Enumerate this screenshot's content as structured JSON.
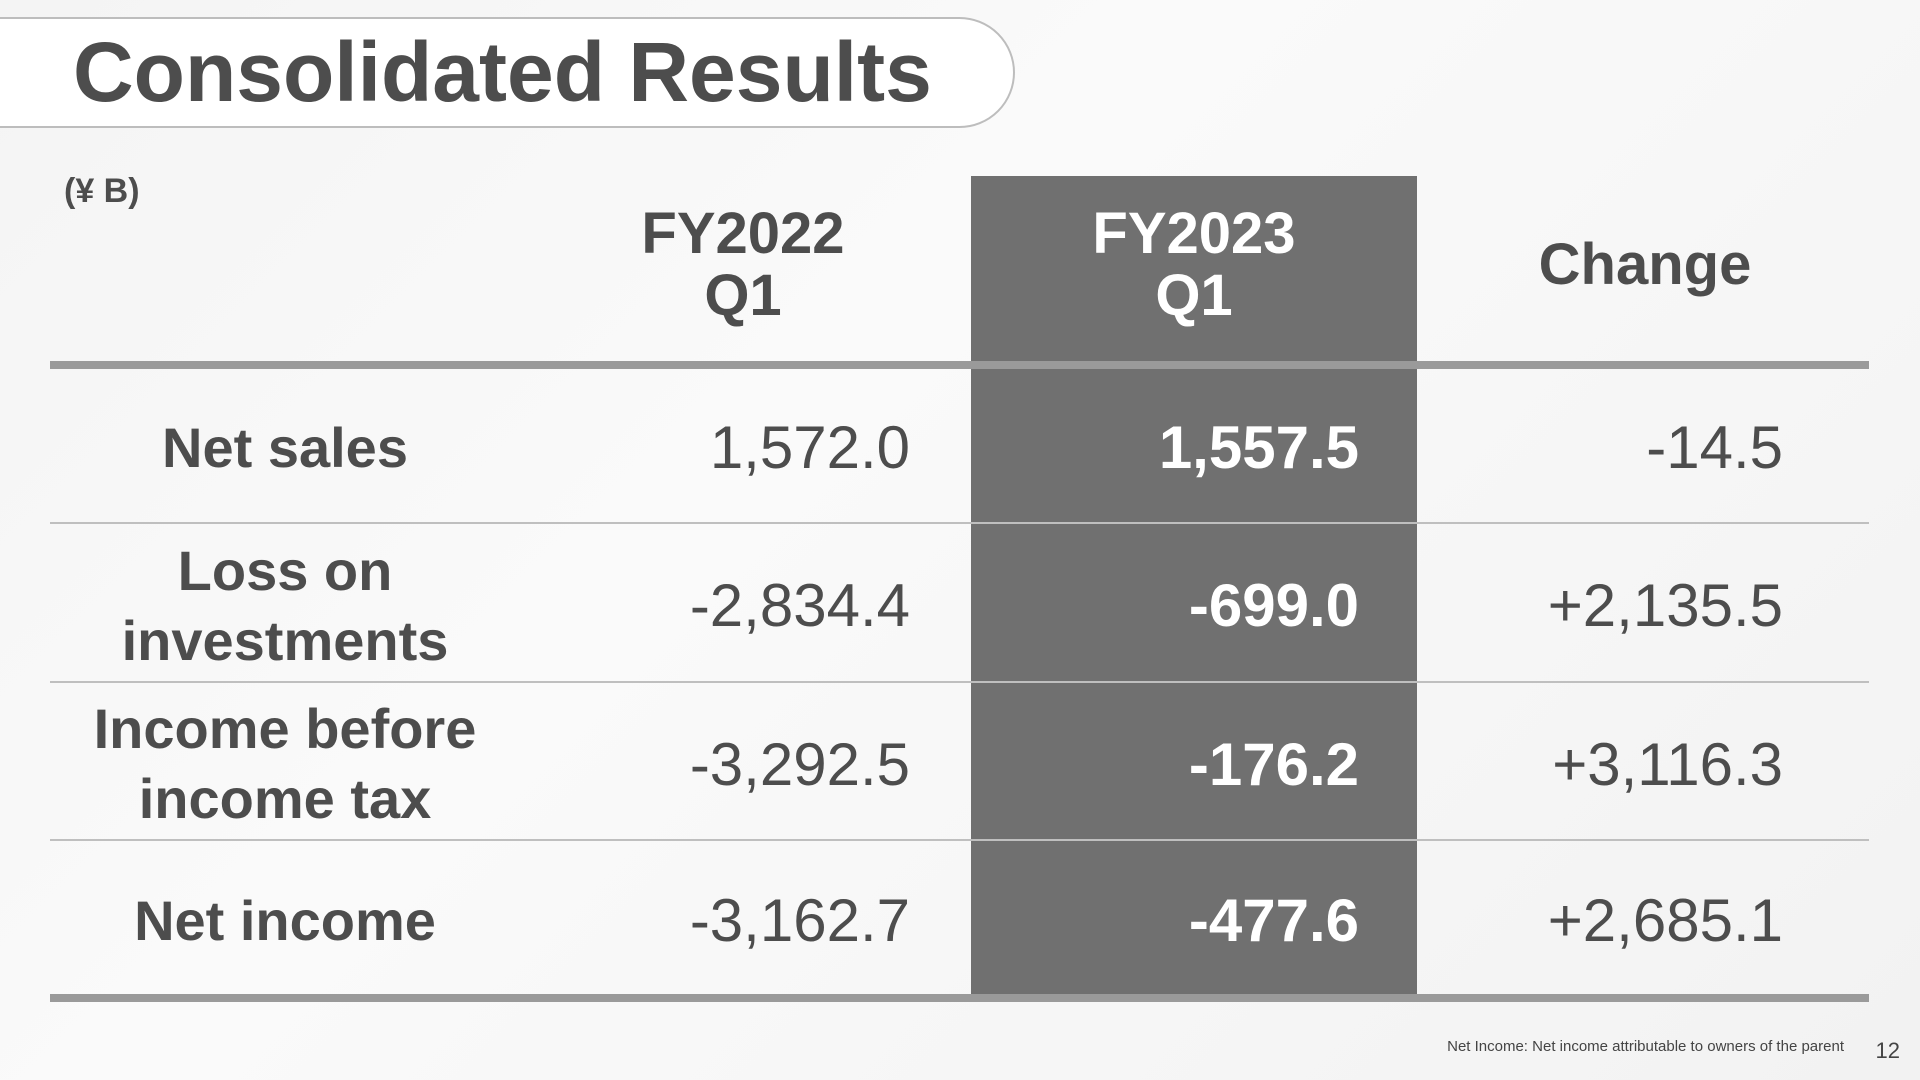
{
  "header": {
    "title": "Consolidated Results",
    "unit": "(¥ B)"
  },
  "table": {
    "columns": [
      "FY2022 Q1",
      "FY2023 Q1",
      "Change"
    ],
    "rows": [
      [
        "Net sales",
        "1,572.0",
        "1,557.5",
        "-14.5"
      ],
      [
        "Loss on investments",
        "-2,834.4",
        "-699.0",
        "+2,135.5"
      ],
      [
        "Income before income tax",
        "-3,292.5",
        "-176.2",
        "+3,116.3"
      ],
      [
        "Net income",
        "-3,162.7",
        "-477.6",
        "+2,685.1"
      ]
    ]
  },
  "footer": {
    "note": "Net Income: Net income attributable to owners of the parent",
    "page": "12"
  }
}
